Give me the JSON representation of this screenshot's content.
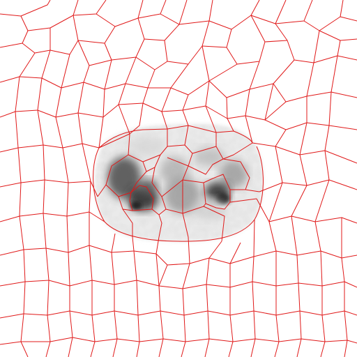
{
  "image": {
    "description_kind": "grayscale cross-sectional scan with a red superpixel / voronoi-like segmentation overlay",
    "background_color": "#ffffff",
    "overlay_color": "#e01818",
    "tissue_tint": "#e8e8e8",
    "dark_tint": "#2a2a2a"
  }
}
